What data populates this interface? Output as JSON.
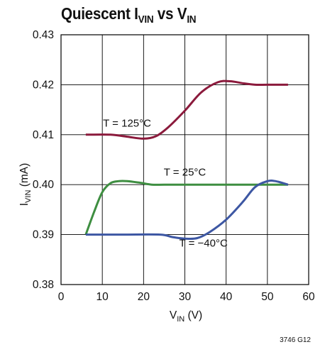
{
  "title": {
    "prefix": "Quiescent I",
    "sub1": "VIN",
    "middle": " vs V",
    "sub2": "IN"
  },
  "figure_id": "3746 G12",
  "colors": {
    "T_125C": "#8b1a3c",
    "T_25C": "#3e8e41",
    "T_minus40C": "#3d57a3",
    "grid": "#000000"
  },
  "chart_data": {
    "type": "line",
    "xlabel": {
      "main": "V",
      "sub": "IN",
      "unit": " (V)"
    },
    "ylabel": {
      "main": "I",
      "sub": "VIN",
      "unit": " (mA)"
    },
    "xlim": [
      0,
      60
    ],
    "ylim": [
      0.38,
      0.43
    ],
    "xticks": [
      "0",
      "10",
      "20",
      "30",
      "40",
      "50",
      "60"
    ],
    "yticks": [
      "0.38",
      "0.39",
      "0.40",
      "0.41",
      "0.42",
      "0.43"
    ],
    "grid": true,
    "series": [
      {
        "name": "T = 125°C",
        "color_key": "T_125C",
        "x": [
          6,
          12,
          16,
          20,
          23,
          26,
          30,
          34,
          38,
          41,
          44,
          47,
          50,
          55
        ],
        "y": [
          0.41,
          0.41,
          0.4096,
          0.4092,
          0.4097,
          0.4115,
          0.4148,
          0.4185,
          0.4205,
          0.4207,
          0.4203,
          0.42,
          0.42,
          0.42
        ]
      },
      {
        "name": "T = 25°C",
        "color_key": "T_25C",
        "x": [
          6,
          8,
          10,
          12,
          14,
          16,
          19,
          22,
          25,
          30,
          40,
          50,
          55
        ],
        "y": [
          0.39,
          0.3945,
          0.3985,
          0.4003,
          0.4007,
          0.4007,
          0.4004,
          0.4,
          0.4,
          0.4,
          0.4,
          0.4,
          0.4
        ]
      },
      {
        "name": "T = −40°C",
        "color_key": "T_minus40C",
        "x": [
          6,
          15,
          24,
          27,
          30,
          33,
          36,
          40,
          44,
          47,
          50,
          52,
          55
        ],
        "y": [
          0.39,
          0.39,
          0.39,
          0.3895,
          0.3892,
          0.3893,
          0.3905,
          0.393,
          0.3965,
          0.3995,
          0.4007,
          0.4007,
          0.4
        ]
      }
    ]
  }
}
